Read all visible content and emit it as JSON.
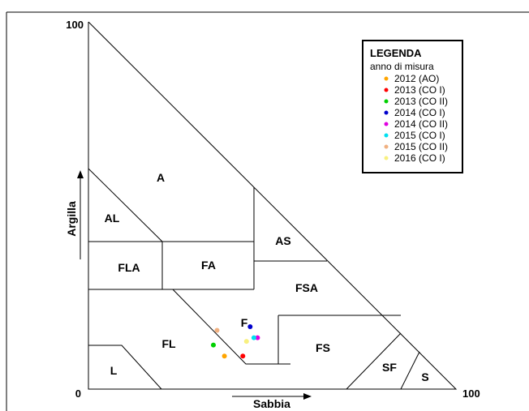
{
  "chart_data": {
    "type": "scatter",
    "subtype": "soil-texture-triangle",
    "xlabel": "Sabbia",
    "ylabel": "Argilla",
    "xlim": [
      0,
      100
    ],
    "ylim": [
      0,
      100
    ],
    "x_ticks": [
      "0",
      "100"
    ],
    "y_ticks": [
      "100"
    ],
    "regions": [
      "A",
      "AL",
      "AS",
      "FLA",
      "FA",
      "FSA",
      "F",
      "FL",
      "FS",
      "L",
      "SF",
      "S"
    ],
    "legend": {
      "position": "top-right",
      "title": "LEGENDA",
      "subtitle": "anno di misura"
    },
    "series": [
      {
        "name": "2012 (AO)",
        "color": "#FFA500",
        "points": [
          {
            "x": 37,
            "y": 9
          }
        ]
      },
      {
        "name": "2013 (CO I)",
        "color": "#FF0000",
        "points": [
          {
            "x": 42,
            "y": 9
          }
        ]
      },
      {
        "name": "2013 (CO II)",
        "color": "#00D000",
        "points": [
          {
            "x": 34,
            "y": 12
          }
        ]
      },
      {
        "name": "2014 (CO I)",
        "color": "#0000CC",
        "points": [
          {
            "x": 44,
            "y": 17
          }
        ]
      },
      {
        "name": "2014 (CO II)",
        "color": "#E000E0",
        "points": [
          {
            "x": 46,
            "y": 14
          }
        ]
      },
      {
        "name": "2015 (CO I)",
        "color": "#00E0F0",
        "points": [
          {
            "x": 45,
            "y": 14
          }
        ]
      },
      {
        "name": "2015 (CO II)",
        "color": "#F0B080",
        "points": [
          {
            "x": 35,
            "y": 16
          }
        ]
      },
      {
        "name": "2016 (CO I)",
        "color": "#F8F080",
        "points": [
          {
            "x": 43,
            "y": 13
          }
        ]
      }
    ]
  }
}
